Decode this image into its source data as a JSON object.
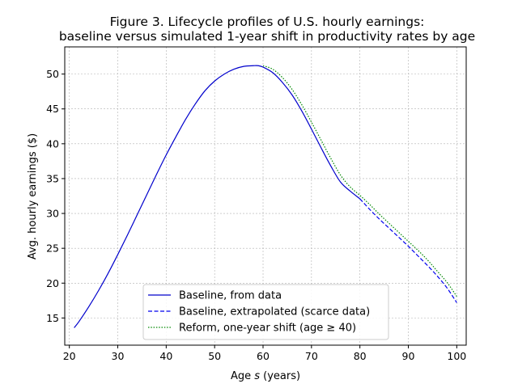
{
  "chart_data": {
    "type": "line",
    "title_line1": "Figure 3. Lifecycle profiles of U.S. hourly earnings:",
    "title_line2": "baseline versus simulated 1-year shift in productivity rates by age",
    "xlabel_prefix": "Age ",
    "xlabel_var": "s",
    "xlabel_suffix": " (years)",
    "ylabel": "Avg. hourly earnings ($)",
    "xlim": [
      19.05,
      101.95
    ],
    "ylim": [
      11.1,
      53.9
    ],
    "xticks": [
      20,
      30,
      40,
      50,
      60,
      70,
      80,
      90,
      100
    ],
    "yticks": [
      15,
      20,
      25,
      30,
      35,
      40,
      45,
      50
    ],
    "grid": true,
    "legend_position": "bottom-center",
    "series": [
      {
        "name": "Baseline, from data",
        "color": "#0000cc",
        "style": "solid",
        "x": [
          21,
          22,
          24,
          26,
          28,
          30,
          32,
          34,
          36,
          38,
          40,
          42,
          44,
          46,
          48,
          50,
          52,
          54,
          56,
          58,
          59,
          60,
          62,
          64,
          66,
          68,
          70,
          72,
          74,
          76,
          78,
          80
        ],
        "y": [
          13.6,
          14.5,
          16.6,
          18.9,
          21.4,
          24.1,
          26.9,
          29.8,
          32.7,
          35.6,
          38.4,
          41.0,
          43.5,
          45.7,
          47.6,
          49.0,
          50.0,
          50.7,
          51.1,
          51.2,
          51.2,
          51.0,
          50.2,
          48.8,
          47.0,
          44.7,
          42.1,
          39.4,
          36.8,
          34.5,
          33.2,
          32.1
        ]
      },
      {
        "name": "Baseline, extrapolated (scarce data)",
        "color": "#0000ee",
        "style": "dashed",
        "x": [
          80,
          82,
          84,
          86,
          88,
          90,
          92,
          94,
          96,
          98,
          100
        ],
        "y": [
          32.1,
          30.6,
          29.2,
          27.9,
          26.6,
          25.3,
          23.9,
          22.5,
          21.0,
          19.3,
          17.2
        ]
      },
      {
        "name": "Reform, one-year shift (age ≥ 40)",
        "color": "#008800",
        "style": "dotted",
        "x": [
          60,
          62,
          64,
          66,
          68,
          70,
          72,
          74,
          76,
          78,
          80,
          82,
          84,
          86,
          88,
          90,
          92,
          94,
          96,
          98,
          100
        ],
        "y": [
          51.2,
          50.7,
          49.5,
          47.8,
          45.6,
          43.1,
          40.5,
          37.9,
          35.5,
          33.8,
          32.6,
          31.3,
          29.9,
          28.6,
          27.3,
          26.0,
          24.7,
          23.3,
          21.7,
          20.1,
          18.1
        ]
      }
    ]
  }
}
